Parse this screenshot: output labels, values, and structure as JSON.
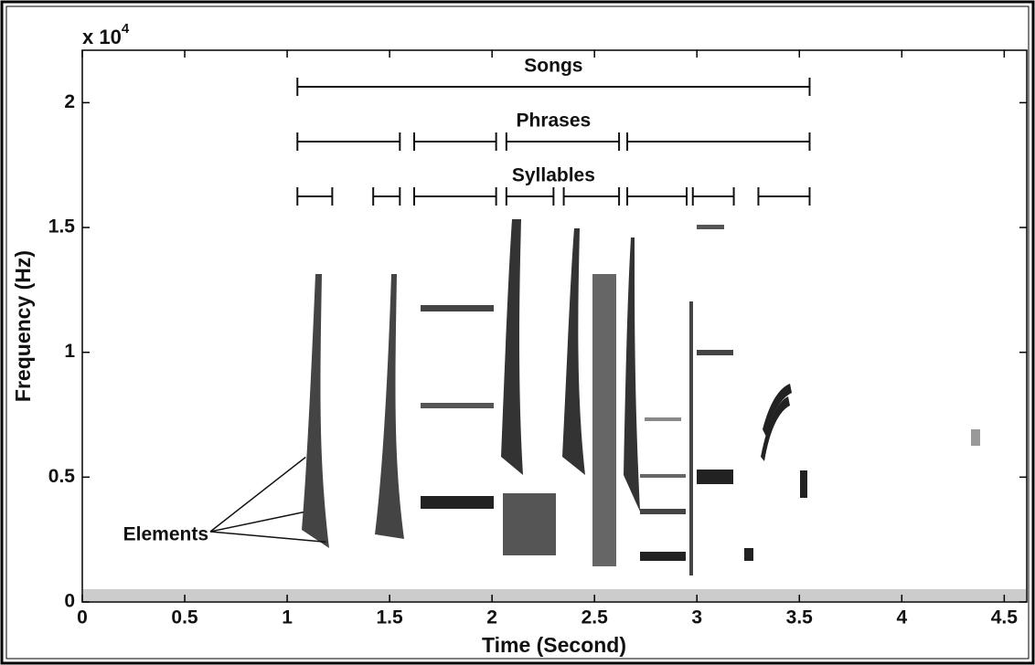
{
  "chart_data": {
    "type": "spectrogram",
    "x_label": "Time (Second)",
    "y_label": "Frequency (Hz)",
    "y_scale_label": {
      "base": "x 10",
      "exponent": "4"
    },
    "xlim": [
      0,
      4.61
    ],
    "xticks": [
      0,
      0.5,
      1,
      1.5,
      2,
      2.5,
      3,
      3.5,
      4,
      4.5
    ],
    "ylim": [
      0,
      22100
    ],
    "yticks": [
      {
        "value": 0,
        "label": "0"
      },
      {
        "value": 5000,
        "label": "0.5"
      },
      {
        "value": 10000,
        "label": "1"
      },
      {
        "value": 15000,
        "label": "1.5"
      },
      {
        "value": 20000,
        "label": "2"
      }
    ],
    "tiers": [
      {
        "name": "Songs",
        "spans": [
          [
            1.05,
            3.55
          ]
        ]
      },
      {
        "name": "Phrases",
        "spans": [
          [
            1.05,
            1.55
          ],
          [
            1.62,
            2.02
          ],
          [
            2.07,
            2.62
          ],
          [
            2.66,
            3.55
          ]
        ]
      },
      {
        "name": "Syllables",
        "spans": [
          [
            1.05,
            1.22
          ],
          [
            1.42,
            1.55
          ],
          [
            1.62,
            2.02
          ],
          [
            2.07,
            2.3
          ],
          [
            2.35,
            2.62
          ],
          [
            2.66,
            2.95
          ],
          [
            2.98,
            3.18
          ],
          [
            3.3,
            3.55
          ]
        ]
      }
    ],
    "element_label": {
      "text": "Elements",
      "targets": [
        {
          "x": 1.09,
          "y": 5800
        },
        {
          "x": 1.08,
          "y": 3600
        },
        {
          "x": 1.19,
          "y": 2400
        }
      ]
    }
  }
}
